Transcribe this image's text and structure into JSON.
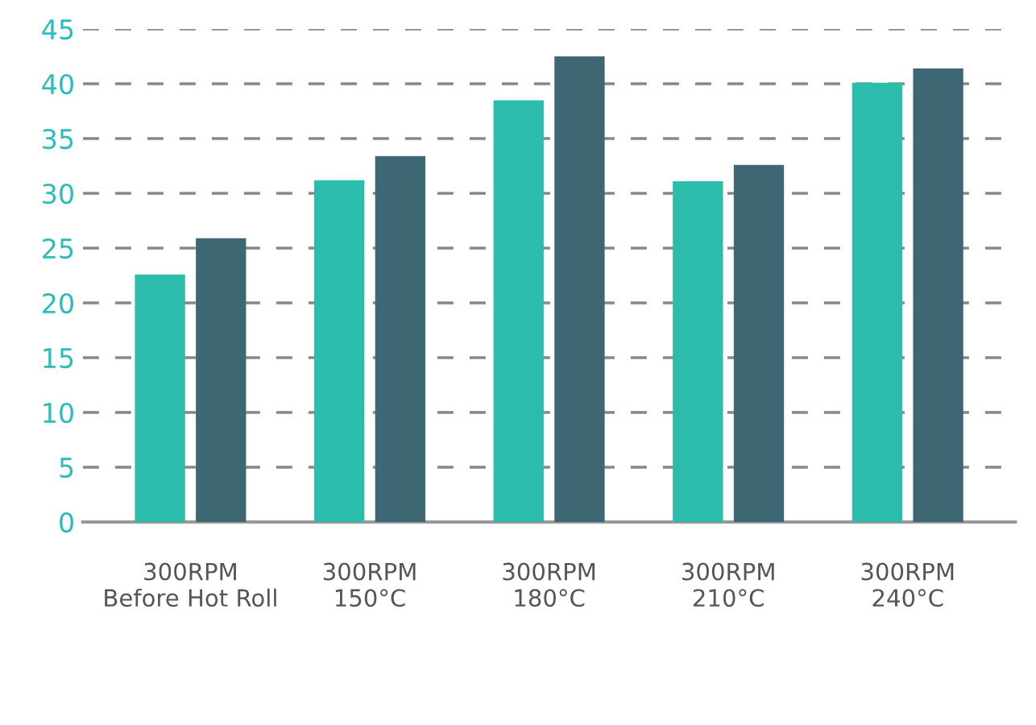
{
  "chart_data": {
    "type": "bar",
    "categories": [
      "300RPM\nBefore Hot Roll",
      "300RPM\n150°C",
      "300RPM\n180°C",
      "300RPM\n210°C",
      "300RPM\n240°C"
    ],
    "series": [
      {
        "color": "#2bbcab",
        "values": [
          22.6,
          31.2,
          38.5,
          31.1,
          40.1
        ]
      },
      {
        "color": "#3e6774",
        "values": [
          25.9,
          33.4,
          42.5,
          32.6,
          41.4
        ]
      }
    ],
    "ylim": [
      0,
      45
    ],
    "yticks": [
      0,
      5,
      10,
      15,
      20,
      25,
      30,
      35,
      40,
      45
    ],
    "grid": "y"
  }
}
